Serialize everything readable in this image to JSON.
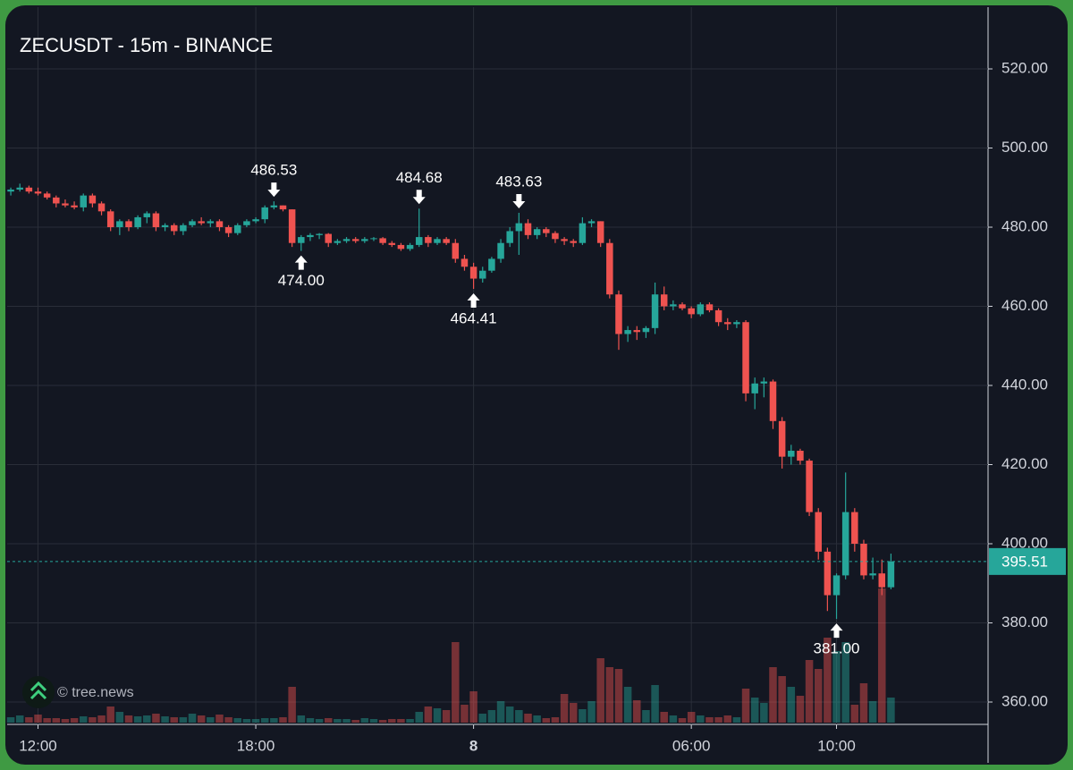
{
  "chart_data": {
    "type": "candlestick",
    "title": "ZECUSDT - 15m - BINANCE",
    "watermark": "© tree.news",
    "up_color": "#26a69a",
    "down_color": "#ef5350",
    "grid": true,
    "xlim": [
      -0.4,
      107.7
    ],
    "xticks": [
      {
        "value": 3,
        "label": "12:00"
      },
      {
        "value": 27,
        "label": "18:00"
      },
      {
        "value": 51,
        "label": "8",
        "bold": true
      },
      {
        "value": 75,
        "label": "06:00"
      },
      {
        "value": 91,
        "label": "10:00"
      }
    ],
    "ylim": [
      354.8,
      535.6
    ],
    "yticks": [
      {
        "value": 360,
        "label": "360.00"
      },
      {
        "value": 380,
        "label": "380.00"
      },
      {
        "value": 400,
        "label": "400.00"
      },
      {
        "value": 420,
        "label": "420.00"
      },
      {
        "value": 440,
        "label": "440.00"
      },
      {
        "value": 460,
        "label": "460.00"
      },
      {
        "value": 480,
        "label": "480.00"
      },
      {
        "value": 500,
        "label": "500.00"
      },
      {
        "value": 520,
        "label": "520.00"
      }
    ],
    "volume_ylim": [
      0,
      160
    ],
    "open": [
      489,
      489.5,
      490,
      489,
      488.5,
      487.5,
      486,
      485.5,
      485,
      488,
      486,
      484,
      480,
      481.5,
      480,
      482.5,
      483.5,
      480,
      480.5,
      479,
      480.5,
      481.5,
      481,
      481.5,
      480,
      478.5,
      480.5,
      481.5,
      482,
      485,
      485.5,
      484.5,
      476,
      477.5,
      478,
      478.3,
      476,
      476.5,
      477,
      476.5,
      477,
      477.2,
      476,
      475.5,
      474.5,
      475.5,
      477.5,
      476,
      477,
      476,
      472,
      470,
      467,
      469,
      472,
      476,
      479,
      481,
      478,
      479.5,
      478.5,
      477,
      476.5,
      476,
      481,
      481.5,
      476,
      463,
      453,
      454,
      453.5,
      454.5,
      463,
      460,
      460.5,
      459.5,
      458,
      460.5,
      459,
      456,
      455.5,
      456,
      438,
      440.5,
      441,
      431,
      422,
      423.5,
      421,
      408,
      398,
      387,
      392,
      408,
      400,
      392,
      392.5,
      389
    ],
    "high": [
      490,
      491,
      490.5,
      490,
      489,
      488,
      487,
      486.5,
      488.5,
      488.5,
      486.5,
      484.5,
      482,
      482,
      483,
      484,
      484,
      481,
      481,
      481,
      482,
      482.5,
      482,
      482,
      480.5,
      481,
      482,
      482.5,
      485.5,
      486.53,
      485.5,
      484.5,
      478,
      478.5,
      478.5,
      478.5,
      477,
      477.5,
      477.5,
      477.5,
      477.5,
      477.5,
      476.5,
      476,
      476,
      484.68,
      478,
      477.5,
      477.5,
      477,
      473,
      471,
      470,
      472.5,
      477,
      480,
      483.63,
      482,
      480,
      480,
      479,
      477.5,
      477,
      482.5,
      482,
      481.5,
      477,
      464,
      455,
      455,
      455,
      466,
      465,
      461.5,
      461,
      460,
      461,
      461,
      459.5,
      457,
      456.5,
      456.5,
      442,
      442,
      441.5,
      432,
      425,
      424,
      421.5,
      409,
      399,
      392.5,
      418,
      409,
      401,
      396.5,
      396,
      397.5
    ],
    "low": [
      488,
      489,
      488.5,
      488,
      487,
      485,
      485,
      484.5,
      484,
      485,
      483,
      479,
      478,
      479,
      479.5,
      481,
      479,
      479,
      478,
      478,
      480,
      480.5,
      480,
      479,
      477.5,
      478,
      480,
      481,
      481,
      484.5,
      484,
      475,
      474.0,
      476.5,
      477,
      475,
      475.5,
      476,
      476,
      476,
      476.5,
      475.5,
      475,
      474,
      474,
      475,
      475,
      475.5,
      475.5,
      471,
      469,
      464.41,
      466,
      468.5,
      471,
      475,
      473,
      477,
      477,
      477.5,
      476,
      475.5,
      475,
      475.5,
      480,
      475,
      462,
      449,
      451,
      451.5,
      452,
      453,
      459,
      459,
      459,
      457,
      457.5,
      458.5,
      455,
      454,
      454.5,
      436,
      434,
      437,
      429,
      419,
      420,
      420,
      407,
      396,
      383,
      381.0,
      391,
      398,
      391,
      391,
      387,
      388.5
    ],
    "close": [
      489.5,
      490,
      489,
      488.5,
      487.5,
      486,
      485.5,
      485,
      488,
      486,
      484,
      480,
      481.5,
      480,
      482.5,
      483.5,
      480,
      480.5,
      479,
      480.5,
      481.5,
      481,
      481.5,
      480,
      478.5,
      480.5,
      481.5,
      482,
      485,
      485.5,
      484.5,
      476,
      477.5,
      478,
      478.3,
      476,
      476.5,
      477,
      476.5,
      477,
      477.2,
      476,
      475.5,
      474.5,
      475.5,
      477.5,
      476,
      477,
      476,
      472,
      470,
      467,
      469,
      472,
      476,
      479,
      481,
      478,
      479.5,
      478.5,
      477,
      476.5,
      476,
      481,
      481.5,
      476,
      463,
      453,
      454,
      453.5,
      454.5,
      463,
      460,
      460.5,
      459.5,
      458,
      460.5,
      459,
      456,
      455.5,
      456,
      438,
      440.5,
      441,
      431,
      422,
      423.5,
      421,
      408,
      398,
      387,
      392,
      408,
      400,
      392,
      392.5,
      389,
      395.51
    ],
    "volume": [
      6,
      8,
      6,
      9,
      5,
      5,
      4,
      5,
      7,
      6,
      8,
      18,
      12,
      8,
      7,
      8,
      10,
      7,
      6,
      6,
      10,
      8,
      6,
      9,
      6,
      5,
      4,
      4,
      5,
      5,
      6,
      40,
      8,
      5,
      4,
      5,
      4,
      4,
      3,
      5,
      4,
      3,
      4,
      4,
      4,
      12,
      18,
      16,
      14,
      90,
      20,
      35,
      10,
      14,
      24,
      18,
      14,
      10,
      8,
      5,
      6,
      32,
      22,
      15,
      24,
      72,
      62,
      60,
      40,
      25,
      14,
      42,
      12,
      8,
      5,
      12,
      8,
      6,
      6,
      8,
      6,
      38,
      28,
      22,
      62,
      52,
      40,
      30,
      70,
      60,
      95,
      80,
      90,
      20,
      44,
      24,
      150,
      28
    ],
    "annotations": [
      {
        "index": 29,
        "at": "high",
        "label": "486.53"
      },
      {
        "index": 32,
        "at": "low",
        "label": "474.00"
      },
      {
        "index": 45,
        "at": "high",
        "label": "484.68"
      },
      {
        "index": 51,
        "at": "low",
        "label": "464.41"
      },
      {
        "index": 56,
        "at": "high",
        "label": "483.63"
      },
      {
        "index": 91,
        "at": "low",
        "label": "381.00"
      }
    ]
  }
}
